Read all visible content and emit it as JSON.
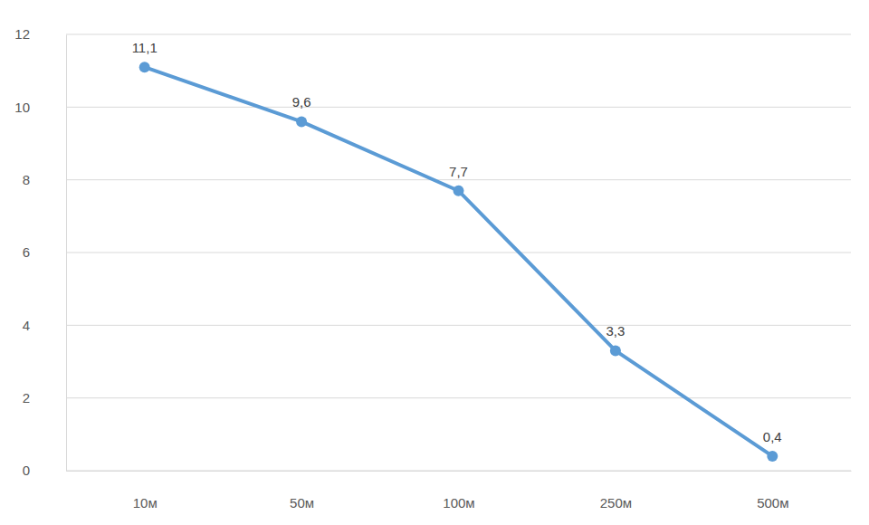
{
  "chart_data": {
    "type": "line",
    "categories": [
      "10м",
      "50м",
      "100м",
      "250м",
      "500м"
    ],
    "values": [
      11.1,
      9.6,
      7.7,
      3.3,
      0.4
    ],
    "value_labels": [
      "11,1",
      "9,6",
      "7,7",
      "3,3",
      "0,4"
    ],
    "color": "#5b9bd5",
    "marker": "circle",
    "ylim": [
      0,
      12
    ],
    "yticks": [
      0,
      2,
      4,
      6,
      8,
      10,
      12
    ],
    "grid": true,
    "data_labels": true
  }
}
